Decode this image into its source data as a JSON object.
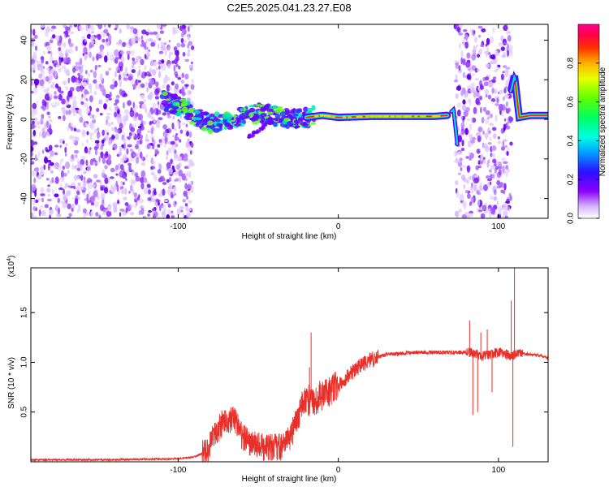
{
  "title": "C2E5.2025.041.23.27.E08",
  "chart_data": [
    {
      "type": "heatmap",
      "xlabel": "Height of straight line (km)",
      "ylabel": "Frequency (Hz)",
      "xlim": [
        -192,
        131
      ],
      "ylim": [
        -50,
        48
      ],
      "xticks": [
        -100,
        0,
        100
      ],
      "yticks": [
        -40,
        -20,
        0,
        20,
        40
      ],
      "xtick_labels": [
        "-100",
        "0",
        "100"
      ],
      "ytick_labels": [
        "-40",
        "-20",
        "0",
        "20",
        "40"
      ],
      "noise_regions": [
        [
          -192,
          -91
        ],
        [
          73,
          108
        ]
      ],
      "ridge": {
        "x": [
          -110,
          -100,
          -90,
          -80,
          -70,
          -60,
          -50,
          -40,
          -30,
          -20,
          -10,
          0,
          20,
          40,
          60,
          68,
          72,
          75,
          85,
          100,
          108,
          110,
          113,
          120,
          131
        ],
        "y": [
          10,
          7,
          2,
          -2,
          -1,
          1,
          3,
          2,
          0,
          1,
          2,
          1,
          1.5,
          1.5,
          1.5,
          2,
          5,
          -18,
          1,
          1,
          15,
          22,
          1,
          2,
          2
        ]
      },
      "colorbar": {
        "label": "Normalized spectral amplitude",
        "range": [
          0,
          1
        ],
        "ticks": [
          0.0,
          0.2,
          0.4,
          0.6,
          0.8
        ],
        "tick_labels": [
          "0.0",
          "0.2",
          "0.4",
          "0.6",
          "0.8"
        ]
      },
      "colors": {
        "min": "#e6d0ff",
        "low": "#7000ff",
        "mid": "#00ffcc",
        "high": "#ff0000"
      }
    },
    {
      "type": "line",
      "xlabel": "Height of straight line (km)",
      "ylabel": "SNR (10 * v/v)",
      "multiplier": "(x10",
      "multiplier_exp": "4",
      "multiplier_close": ")",
      "xlim": [
        -192,
        131
      ],
      "ylim": [
        0,
        1.95
      ],
      "xticks": [
        -100,
        0,
        100
      ],
      "yticks": [
        0.5,
        1.0,
        1.5
      ],
      "xtick_labels": [
        "-100",
        "0",
        "100"
      ],
      "ytick_labels": [
        "0.5",
        "1.0",
        "1.5"
      ],
      "series": [
        {
          "color": "#e8302a",
          "x": [
            -192,
            -150,
            -100,
            -90,
            -82,
            -78,
            -72,
            -65,
            -60,
            -55,
            -48,
            -42,
            -35,
            -30,
            -25,
            -22,
            -18,
            -14,
            -10,
            -5,
            0,
            5,
            10,
            15,
            20,
            25,
            30,
            40,
            50,
            60,
            70,
            80,
            85,
            90,
            95,
            100,
            104,
            108,
            110,
            115,
            120,
            125,
            131
          ],
          "y": [
            0.02,
            0.02,
            0.03,
            0.05,
            0.1,
            0.25,
            0.4,
            0.42,
            0.25,
            0.18,
            0.15,
            0.14,
            0.15,
            0.25,
            0.45,
            0.6,
            0.62,
            0.62,
            0.68,
            0.72,
            0.76,
            0.85,
            0.92,
            0.98,
            1.02,
            1.05,
            1.08,
            1.09,
            1.1,
            1.1,
            1.1,
            1.1,
            1.09,
            1.06,
            1.08,
            1.1,
            1.09,
            1.05,
            1.08,
            1.09,
            1.08,
            1.07,
            1.05
          ]
        }
      ],
      "spikes": [
        {
          "x": -17,
          "y": 1.3
        },
        {
          "x": -18,
          "y": 0.95
        },
        {
          "x": 82,
          "y": 1.42
        },
        {
          "x": 84,
          "y": 0.47
        },
        {
          "x": 87,
          "y": 0.5
        },
        {
          "x": 89,
          "y": 1.3
        },
        {
          "x": 93,
          "y": 1.33
        },
        {
          "x": 96,
          "y": 0.7
        },
        {
          "x": 108,
          "y": 1.62
        },
        {
          "x": 109,
          "y": 0.15
        },
        {
          "x": 110,
          "y": 1.95
        }
      ]
    }
  ]
}
